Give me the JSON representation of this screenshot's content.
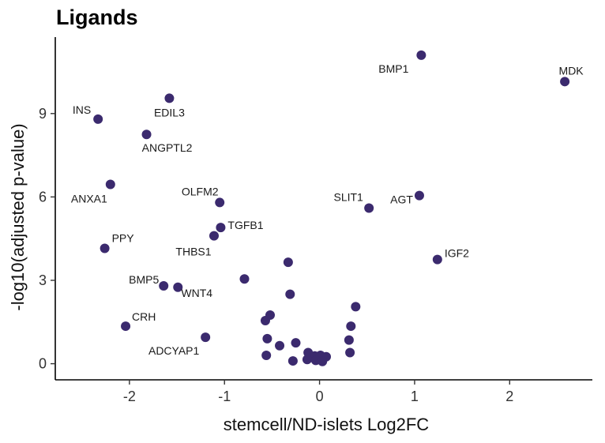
{
  "chart_data": {
    "type": "scatter",
    "title": "Ligands",
    "xlabel": "stemcell/ND-islets Log2FC",
    "ylabel": "-log10(adjusted p-value)",
    "xlim": [
      -2.78,
      2.87
    ],
    "ylim": [
      -0.58,
      11.75
    ],
    "xticks": [
      -2,
      -1,
      0,
      1,
      2
    ],
    "yticks": [
      0,
      3,
      6,
      9
    ],
    "grid": false,
    "legend": "none",
    "point_color": "#3b2a6e",
    "labeled_points": [
      {
        "label": "BMP1",
        "x": 1.07,
        "y": 11.1
      },
      {
        "label": "MDK",
        "x": 2.58,
        "y": 10.15
      },
      {
        "label": "INS",
        "x": -2.33,
        "y": 8.8
      },
      {
        "label": "EDIL3",
        "x": -1.58,
        "y": 9.55
      },
      {
        "label": "ANGPTL2",
        "x": -1.82,
        "y": 8.25
      },
      {
        "label": "ANXA1",
        "x": -2.2,
        "y": 6.45
      },
      {
        "label": "OLFM2",
        "x": -1.05,
        "y": 5.8
      },
      {
        "label": "SLIT1",
        "x": 0.52,
        "y": 5.6
      },
      {
        "label": "AGT",
        "x": 1.05,
        "y": 6.05
      },
      {
        "label": "TGFB1",
        "x": -1.04,
        "y": 4.9
      },
      {
        "label": "THBS1",
        "x": -1.11,
        "y": 4.6
      },
      {
        "label": "PPY",
        "x": -2.26,
        "y": 4.15
      },
      {
        "label": "IGF2",
        "x": 1.24,
        "y": 3.75
      },
      {
        "label": "BMP5",
        "x": -1.64,
        "y": 2.8
      },
      {
        "label": "WNT4",
        "x": -1.49,
        "y": 2.75
      },
      {
        "label": "CRH",
        "x": -2.04,
        "y": 1.35
      },
      {
        "label": "ADCYAP1",
        "x": -1.2,
        "y": 0.95
      }
    ],
    "unlabeled_points": [
      {
        "x": -0.79,
        "y": 3.05
      },
      {
        "x": -0.33,
        "y": 3.65
      },
      {
        "x": -0.31,
        "y": 2.5
      },
      {
        "x": 0.38,
        "y": 2.05
      },
      {
        "x": -0.52,
        "y": 1.75
      },
      {
        "x": -0.57,
        "y": 1.55
      },
      {
        "x": 0.33,
        "y": 1.35
      },
      {
        "x": -0.55,
        "y": 0.9
      },
      {
        "x": 0.31,
        "y": 0.85
      },
      {
        "x": -0.25,
        "y": 0.75
      },
      {
        "x": -0.42,
        "y": 0.65
      },
      {
        "x": 0.32,
        "y": 0.4
      },
      {
        "x": -0.12,
        "y": 0.4
      },
      {
        "x": -0.56,
        "y": 0.3
      },
      {
        "x": -0.05,
        "y": 0.28
      },
      {
        "x": 0.07,
        "y": 0.25
      },
      {
        "x": 0.01,
        "y": 0.3
      },
      {
        "x": -0.13,
        "y": 0.15
      },
      {
        "x": -0.04,
        "y": 0.12
      },
      {
        "x": -0.28,
        "y": 0.1
      },
      {
        "x": 0.03,
        "y": 0.08
      }
    ]
  }
}
